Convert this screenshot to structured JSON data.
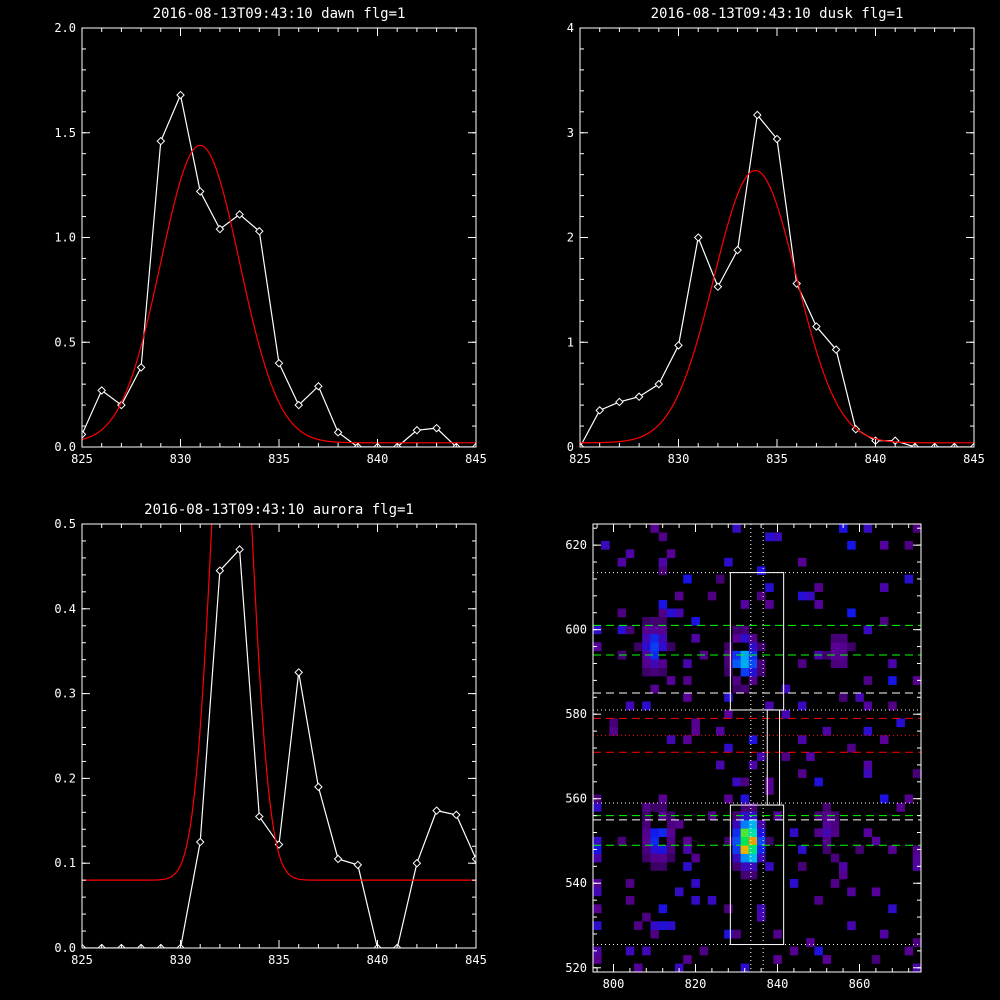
{
  "chart_data": [
    {
      "type": "line",
      "title": "2016-08-13T09:43:10 dawn flg=1",
      "xlim": [
        825,
        845
      ],
      "ylim": [
        0,
        2.0
      ],
      "xticks": [
        825,
        830,
        835,
        840,
        845
      ],
      "xtick_labels": [
        "825",
        "830",
        "835",
        "840",
        "845"
      ],
      "yticks": [
        0,
        0.5,
        1.0,
        1.5,
        2.0
      ],
      "ytick_labels": [
        "0.0",
        "0.5",
        "1.0",
        "1.5",
        "2.0"
      ],
      "series": [
        {
          "kind": "data",
          "color": "#ffffff",
          "marker": "diamond",
          "x": [
            825,
            826,
            827,
            828,
            829,
            830,
            831,
            832,
            833,
            834,
            835,
            836,
            837,
            838,
            839,
            840,
            841,
            842,
            843,
            844,
            845
          ],
          "y": [
            0.06,
            0.27,
            0.2,
            0.38,
            1.46,
            1.68,
            1.22,
            1.04,
            1.11,
            1.03,
            0.4,
            0.2,
            0.29,
            0.07,
            0.0,
            0.0,
            0.0,
            0.08,
            0.09,
            0.0,
            0.0
          ]
        },
        {
          "kind": "fit",
          "color": "#ff0000",
          "gaussian": {
            "amplitude": 1.42,
            "center": 831.0,
            "sigma": 2.0,
            "baseline": 0.02
          }
        }
      ]
    },
    {
      "type": "line",
      "title": "2016-08-13T09:43:10 dusk flg=1",
      "xlim": [
        825,
        845
      ],
      "ylim": [
        0,
        4
      ],
      "xticks": [
        825,
        830,
        835,
        840,
        845
      ],
      "xtick_labels": [
        "825",
        "830",
        "835",
        "840",
        "845"
      ],
      "yticks": [
        0,
        1,
        2,
        3,
        4
      ],
      "ytick_labels": [
        "0",
        "1",
        "2",
        "3",
        "4"
      ],
      "series": [
        {
          "kind": "data",
          "color": "#ffffff",
          "marker": "diamond",
          "x": [
            825,
            826,
            827,
            828,
            829,
            830,
            831,
            832,
            833,
            834,
            835,
            836,
            837,
            838,
            839,
            840,
            841,
            842,
            843,
            844,
            845
          ],
          "y": [
            0.0,
            0.35,
            0.43,
            0.48,
            0.6,
            0.97,
            2.0,
            1.53,
            1.88,
            3.17,
            2.94,
            1.56,
            1.15,
            0.93,
            0.17,
            0.06,
            0.06,
            0.0,
            0.0,
            0.0,
            0.0
          ]
        },
        {
          "kind": "fit",
          "color": "#ff0000",
          "gaussian": {
            "amplitude": 2.6,
            "center": 833.9,
            "sigma": 2.1,
            "baseline": 0.04
          }
        }
      ]
    },
    {
      "type": "line",
      "title": "2016-08-13T09:43:10 aurora flg=1",
      "xlim": [
        825,
        845
      ],
      "ylim": [
        0,
        0.5
      ],
      "xticks": [
        825,
        830,
        835,
        840,
        845
      ],
      "xtick_labels": [
        "825",
        "830",
        "835",
        "840",
        "845"
      ],
      "yticks": [
        0,
        0.1,
        0.2,
        0.3,
        0.4,
        0.5
      ],
      "ytick_labels": [
        "0.0",
        "0.1",
        "0.2",
        "0.3",
        "0.4",
        "0.5"
      ],
      "series": [
        {
          "kind": "data",
          "color": "#ffffff",
          "marker": "diamond",
          "x": [
            825,
            826,
            827,
            828,
            829,
            830,
            831,
            832,
            833,
            834,
            835,
            836,
            837,
            838,
            839,
            840,
            841,
            842,
            843,
            844,
            845
          ],
          "y": [
            0,
            0,
            0,
            0,
            0,
            0,
            0.125,
            0.445,
            0.47,
            0.155,
            0.122,
            0.325,
            0.19,
            0.105,
            0.098,
            0,
            0,
            0.1,
            0.162,
            0.157,
            0.105
          ]
        },
        {
          "kind": "fit",
          "color": "#ff0000",
          "gaussian": {
            "amplitude": 0.74,
            "center": 832.6,
            "sigma": 0.95,
            "baseline": 0.08
          }
        }
      ]
    },
    {
      "type": "heatmap",
      "xlim": [
        795,
        875
      ],
      "ylim": [
        519,
        625
      ],
      "xticks": [
        800,
        820,
        840,
        860
      ],
      "xtick_labels": [
        "800",
        "820",
        "840",
        "860"
      ],
      "yticks": [
        520,
        540,
        560,
        580,
        600,
        620
      ],
      "ytick_labels": [
        "520",
        "540",
        "560",
        "580",
        "600",
        "620"
      ],
      "hotspots": [
        {
          "x": 833,
          "y": 550,
          "strength": 1.0
        },
        {
          "x": 832,
          "y": 593,
          "strength": 0.6
        },
        {
          "x": 811,
          "y": 551,
          "strength": 0.45
        },
        {
          "x": 810,
          "y": 596,
          "strength": 0.4
        },
        {
          "x": 852,
          "y": 553,
          "strength": 0.25
        },
        {
          "x": 855,
          "y": 595,
          "strength": 0.2
        }
      ],
      "rectangles": [
        {
          "x": [
            828.5,
            841.5
          ],
          "y": [
            581,
            613.5
          ],
          "color": "#ffffff"
        },
        {
          "x": [
            828.5,
            841.5
          ],
          "y": [
            525.5,
            558.5
          ],
          "color": "#ffffff"
        },
        {
          "x": [
            837.5,
            840.5
          ],
          "y": [
            558.5,
            581
          ],
          "color": "#ffffff"
        }
      ],
      "hlines": [
        {
          "y": 613.5,
          "color": "#ffffff",
          "style": "dotted"
        },
        {
          "y": 601,
          "color": "#00ff00",
          "style": "dashed"
        },
        {
          "y": 594,
          "color": "#00ff00",
          "style": "dashed"
        },
        {
          "y": 585,
          "color": "#ffffff",
          "style": "dashed"
        },
        {
          "y": 581,
          "color": "#ffffff",
          "style": "dotted"
        },
        {
          "y": 579,
          "color": "#ff0000",
          "style": "dashed"
        },
        {
          "y": 575,
          "color": "#ff0000",
          "style": "dotted"
        },
        {
          "y": 571,
          "color": "#ff0000",
          "style": "dashed"
        },
        {
          "y": 559,
          "color": "#ffffff",
          "style": "dotted"
        },
        {
          "y": 556,
          "color": "#00ff00",
          "style": "dashed"
        },
        {
          "y": 555,
          "color": "#ffffff",
          "style": "dashed"
        },
        {
          "y": 549,
          "color": "#00ff00",
          "style": "dashed"
        },
        {
          "y": 525.5,
          "color": "#ffffff",
          "style": "dotted"
        }
      ],
      "vlines": [
        {
          "x": 833.5,
          "color": "#ffffff",
          "style": "dotted"
        },
        {
          "x": 836.5,
          "color": "#ffffff",
          "style": "dotted"
        }
      ]
    }
  ]
}
